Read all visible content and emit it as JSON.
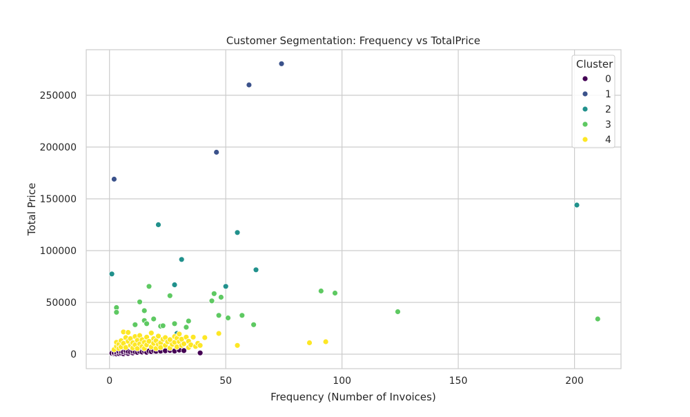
{
  "chart_data": {
    "type": "scatter",
    "title": "Customer Segmentation: Frequency vs TotalPrice",
    "xlabel": "Frequency (Number of Invoices)",
    "ylabel": "Total Price",
    "xlim": [
      -10,
      220
    ],
    "ylim": [
      -14000,
      294000
    ],
    "xticks": [
      0,
      50,
      100,
      150,
      200
    ],
    "yticks": [
      0,
      50000,
      100000,
      150000,
      200000,
      250000
    ],
    "grid": true,
    "legend": {
      "title": "Cluster",
      "placement": "top-right"
    },
    "series": [
      {
        "name": "0",
        "color": "#440154",
        "points": [
          [
            1,
            300
          ],
          [
            1,
            900
          ],
          [
            2,
            500
          ],
          [
            2,
            1400
          ],
          [
            3,
            200
          ],
          [
            3,
            1800
          ],
          [
            4,
            600
          ],
          [
            4,
            2500
          ],
          [
            5,
            1100
          ],
          [
            5,
            3000
          ],
          [
            6,
            400
          ],
          [
            6,
            2100
          ],
          [
            7,
            1500
          ],
          [
            7,
            3300
          ],
          [
            8,
            700
          ],
          [
            8,
            2600
          ],
          [
            9,
            1900
          ],
          [
            10,
            1200
          ],
          [
            10,
            2800
          ],
          [
            11,
            2300
          ],
          [
            12,
            1700
          ],
          [
            13,
            2600
          ],
          [
            14,
            2000
          ],
          [
            15,
            2900
          ],
          [
            16,
            1800
          ],
          [
            17,
            3100
          ],
          [
            18,
            2400
          ],
          [
            19,
            3400
          ],
          [
            20,
            2700
          ],
          [
            22,
            2900
          ],
          [
            24,
            3300
          ],
          [
            26,
            3600
          ],
          [
            28,
            3100
          ],
          [
            30,
            3900
          ],
          [
            32,
            3500
          ],
          [
            39,
            1200
          ]
        ]
      },
      {
        "name": "1",
        "color": "#3b528b",
        "points": [
          [
            2,
            169000
          ],
          [
            46,
            195000
          ],
          [
            60,
            260000
          ],
          [
            74,
            280500
          ]
        ]
      },
      {
        "name": "2",
        "color": "#21918c",
        "points": [
          [
            1,
            77500
          ],
          [
            21,
            125000
          ],
          [
            28,
            67000
          ],
          [
            31,
            91500
          ],
          [
            50,
            65500
          ],
          [
            55,
            117500
          ],
          [
            63,
            81500
          ],
          [
            201,
            144000
          ],
          [
            29,
            20000
          ]
        ]
      },
      {
        "name": "3",
        "color": "#5ec962",
        "points": [
          [
            3,
            45000
          ],
          [
            3,
            40500
          ],
          [
            13,
            50500
          ],
          [
            15,
            42000
          ],
          [
            15,
            32500
          ],
          [
            16,
            29500
          ],
          [
            17,
            65500
          ],
          [
            19,
            34000
          ],
          [
            22,
            27000
          ],
          [
            23,
            27500
          ],
          [
            26,
            56500
          ],
          [
            28,
            29500
          ],
          [
            33,
            26000
          ],
          [
            34,
            32000
          ],
          [
            44,
            51500
          ],
          [
            45,
            58500
          ],
          [
            47,
            37500
          ],
          [
            48,
            55000
          ],
          [
            51,
            35000
          ],
          [
            57,
            37500
          ],
          [
            62,
            28500
          ],
          [
            91,
            61000
          ],
          [
            97,
            59000
          ],
          [
            124,
            41000
          ],
          [
            210,
            34000
          ],
          [
            11,
            28500
          ]
        ]
      },
      {
        "name": "4",
        "color": "#fde725",
        "points": [
          [
            2,
            4500
          ],
          [
            3,
            7500
          ],
          [
            3,
            11500
          ],
          [
            4,
            9500
          ],
          [
            4,
            5500
          ],
          [
            5,
            13000
          ],
          [
            5,
            7000
          ],
          [
            6,
            21500
          ],
          [
            6,
            10500
          ],
          [
            7,
            16000
          ],
          [
            7,
            6500
          ],
          [
            8,
            21000
          ],
          [
            8,
            12500
          ],
          [
            9,
            8500
          ],
          [
            9,
            15000
          ],
          [
            10,
            11000
          ],
          [
            10,
            6000
          ],
          [
            11,
            17000
          ],
          [
            11,
            9000
          ],
          [
            12,
            13500
          ],
          [
            12,
            5500
          ],
          [
            13,
            18000
          ],
          [
            13,
            10000
          ],
          [
            14,
            7500
          ],
          [
            14,
            14000
          ],
          [
            15,
            11500
          ],
          [
            15,
            5500
          ],
          [
            16,
            16500
          ],
          [
            16,
            9000
          ],
          [
            17,
            12500
          ],
          [
            18,
            20500
          ],
          [
            18,
            7000
          ],
          [
            19,
            15000
          ],
          [
            19,
            10500
          ],
          [
            20,
            13000
          ],
          [
            20,
            5500
          ],
          [
            21,
            17500
          ],
          [
            21,
            9500
          ],
          [
            22,
            11000
          ],
          [
            22,
            6500
          ],
          [
            23,
            14500
          ],
          [
            24,
            8500
          ],
          [
            24,
            16000
          ],
          [
            25,
            12000
          ],
          [
            26,
            6000
          ],
          [
            26,
            14000
          ],
          [
            27,
            9500
          ],
          [
            28,
            17000
          ],
          [
            28,
            11500
          ],
          [
            29,
            7000
          ],
          [
            29,
            15500
          ],
          [
            30,
            12000
          ],
          [
            30,
            19500
          ],
          [
            31,
            8500
          ],
          [
            31,
            14500
          ],
          [
            32,
            10000
          ],
          [
            33,
            16500
          ],
          [
            34,
            6500
          ],
          [
            34,
            12500
          ],
          [
            35,
            9000
          ],
          [
            36,
            16500
          ],
          [
            37,
            7500
          ],
          [
            38,
            10500
          ],
          [
            39,
            8500
          ],
          [
            41,
            16000
          ],
          [
            47,
            20000
          ],
          [
            55,
            8500
          ],
          [
            86,
            11000
          ],
          [
            93,
            12000
          ]
        ]
      }
    ]
  }
}
